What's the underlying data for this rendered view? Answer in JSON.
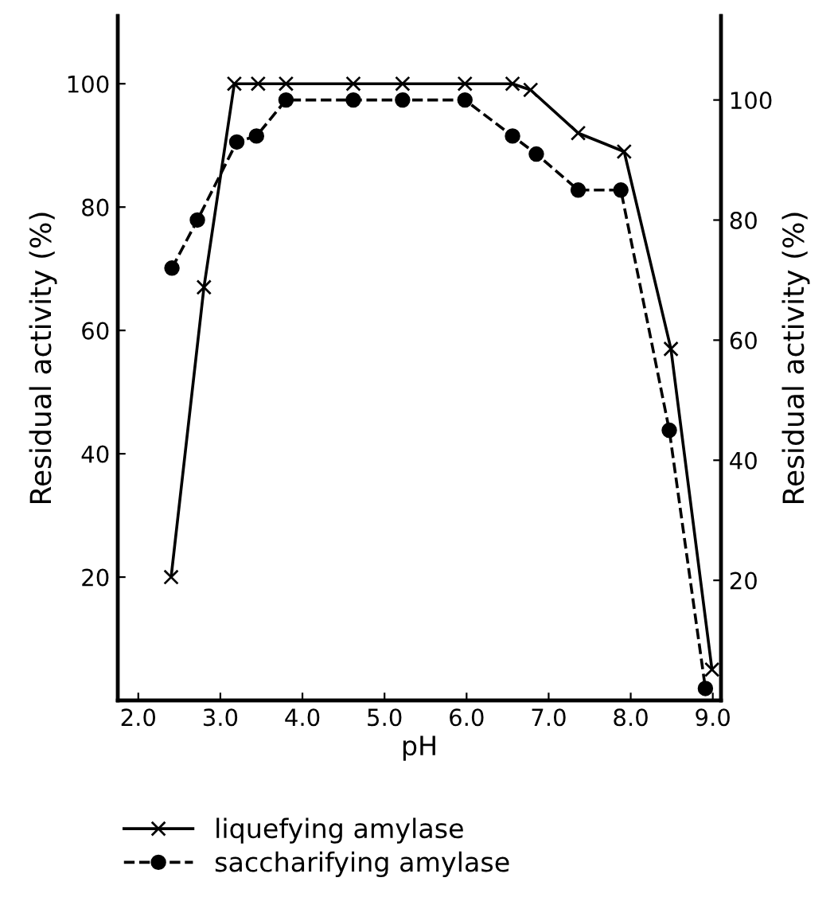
{
  "chart_data": {
    "type": "line",
    "xlabel": "pH",
    "ylabel": "Residual activity (%)",
    "y2label": "Residual activity (%)",
    "xlim": [
      1.75,
      9.1
    ],
    "xticks": [
      {
        "value": 2,
        "label": "2.0"
      },
      {
        "value": 3,
        "label": "3.0"
      },
      {
        "value": 4,
        "label": "4.0"
      },
      {
        "value": 5,
        "label": "5.0"
      },
      {
        "value": 6,
        "label": "6.0"
      },
      {
        "value": 7,
        "label": "7.0"
      },
      {
        "value": 8,
        "label": "8.0"
      },
      {
        "value": 9,
        "label": "9.0"
      }
    ],
    "ylim": [
      0,
      111
    ],
    "yticks": [
      20,
      40,
      60,
      80,
      100
    ],
    "y2lim": [
      0,
      114
    ],
    "y2ticks": [
      20,
      40,
      60,
      80,
      100
    ],
    "grid": false,
    "legend": "bottom",
    "series": [
      {
        "name": "liquefying amylase",
        "color": "#000000",
        "marker": "cross",
        "line_style": "solid",
        "x": [
          2.4,
          2.8,
          3.17,
          3.46,
          3.8,
          4.62,
          5.22,
          5.98,
          6.56,
          6.78,
          7.36,
          7.92,
          8.49,
          8.99
        ],
        "values": [
          20,
          67,
          100,
          100,
          100,
          100,
          100,
          100,
          100,
          99,
          92,
          89,
          57,
          5
        ]
      },
      {
        "name": "saccharifying amylase",
        "color": "#000000",
        "marker": "circle",
        "line_style": "dashed",
        "axis": "y2",
        "x": [
          2.41,
          2.72,
          3.2,
          3.44,
          3.8,
          4.62,
          5.22,
          5.98,
          6.56,
          6.85,
          7.36,
          7.88,
          8.47,
          8.91
        ],
        "values": [
          72,
          80,
          93,
          94,
          100,
          100,
          100,
          100,
          94,
          91,
          85,
          85,
          45,
          2
        ]
      }
    ]
  }
}
